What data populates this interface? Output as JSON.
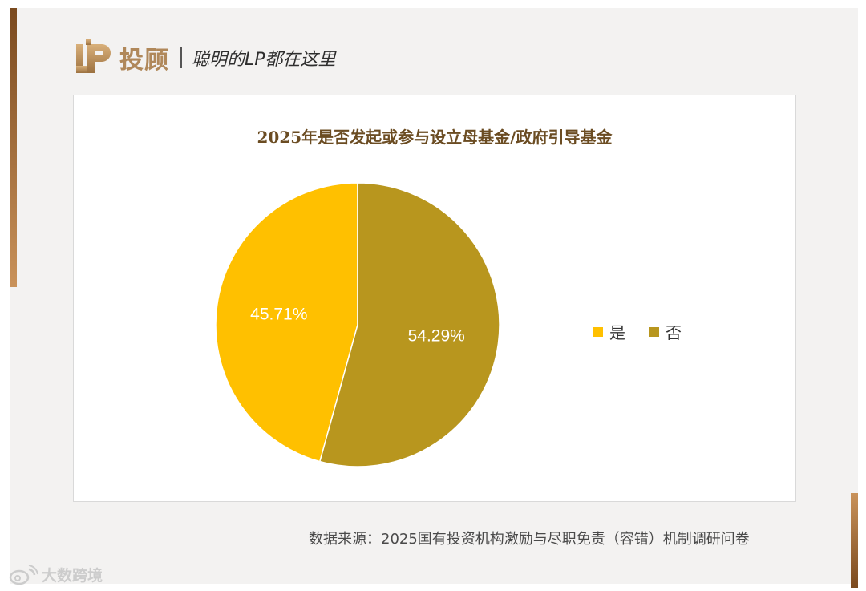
{
  "header": {
    "brand": "投顾",
    "tagline": "聪明的LP都在这里",
    "logo_icon": "lp-logo-icon"
  },
  "chart_data": {
    "type": "pie",
    "title": "2025年是否发起或参与设立母基金/政府引导基金",
    "categories": [
      "是",
      "否"
    ],
    "values": [
      45.71,
      54.29
    ],
    "labels": [
      "45.71%",
      "54.29%"
    ],
    "colors": [
      "#FFC000",
      "#B8961E"
    ],
    "legend": "right"
  },
  "source": "数据来源：2025国有投资机构激励与尽职免责（容错）机制调研问卷",
  "watermark": {
    "icon": "weibo-icon",
    "text": "大数跨境"
  }
}
